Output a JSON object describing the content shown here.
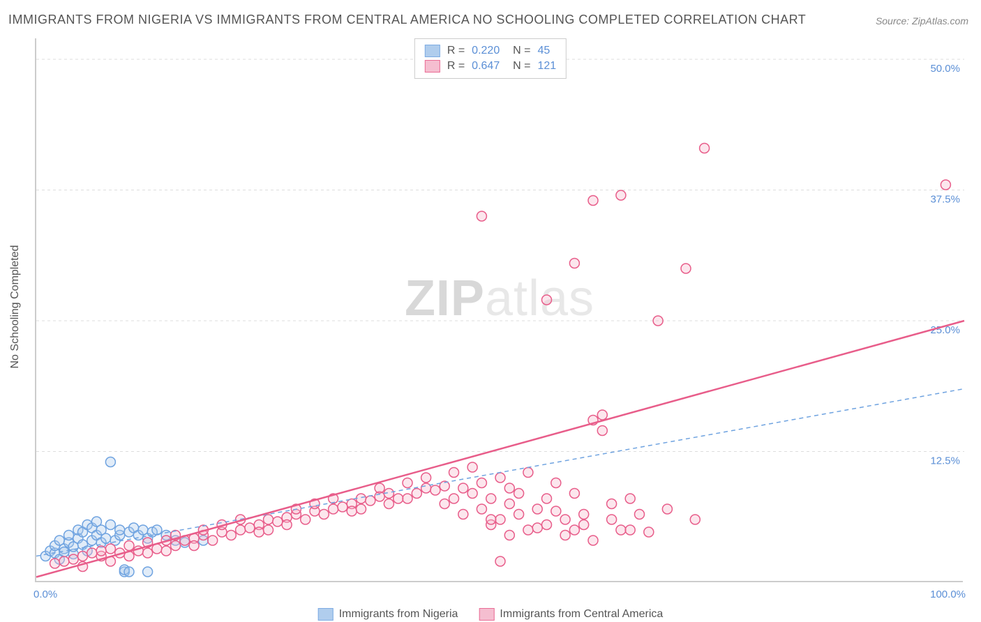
{
  "title": "IMMIGRANTS FROM NIGERIA VS IMMIGRANTS FROM CENTRAL AMERICA NO SCHOOLING COMPLETED CORRELATION CHART",
  "source": "Source: ZipAtlas.com",
  "watermark_zip": "ZIP",
  "watermark_atlas": "atlas",
  "y_axis_title": "No Schooling Completed",
  "x_label_min": "0.0%",
  "x_label_max": "100.0%",
  "chart": {
    "type": "scatter",
    "background_color": "#ffffff",
    "grid_color": "#dddddd",
    "axis_color": "#cccccc",
    "tick_label_color": "#5b8fd6",
    "xlim": [
      0,
      100
    ],
    "ylim": [
      0,
      52
    ],
    "y_ticks": [
      12.5,
      25.0,
      37.5,
      50.0
    ],
    "y_tick_labels": [
      "12.5%",
      "25.0%",
      "37.5%",
      "50.0%"
    ],
    "marker_radius": 7,
    "marker_stroke_width": 1.5,
    "marker_fill_opacity": 0.35,
    "series": [
      {
        "id": "nigeria",
        "label": "Immigrants from Nigeria",
        "color": "#6fa3e0",
        "fill": "#a8c8ec",
        "R": "0.220",
        "N": "45",
        "trend": {
          "x1": 0,
          "y1": 2.5,
          "x2": 100,
          "y2": 18.5,
          "style": "dashed",
          "width": 1.5
        },
        "points": [
          [
            1,
            2.5
          ],
          [
            1.5,
            3.0
          ],
          [
            2,
            2.8
          ],
          [
            2,
            3.5
          ],
          [
            2.5,
            2.2
          ],
          [
            2.5,
            4.0
          ],
          [
            3,
            3.2
          ],
          [
            3,
            2.9
          ],
          [
            3.5,
            3.8
          ],
          [
            3.5,
            4.5
          ],
          [
            4,
            2.7
          ],
          [
            4,
            3.4
          ],
          [
            4.5,
            4.2
          ],
          [
            4.5,
            5.0
          ],
          [
            5,
            3.6
          ],
          [
            5,
            4.8
          ],
          [
            5.5,
            5.5
          ],
          [
            5.5,
            3.0
          ],
          [
            6,
            4.0
          ],
          [
            6,
            5.2
          ],
          [
            6.5,
            4.5
          ],
          [
            6.5,
            5.8
          ],
          [
            7,
            3.8
          ],
          [
            7,
            5.0
          ],
          [
            7.5,
            4.2
          ],
          [
            8,
            5.5
          ],
          [
            8,
            11.5
          ],
          [
            8.5,
            4.0
          ],
          [
            9,
            4.5
          ],
          [
            9,
            5.0
          ],
          [
            9.5,
            1.0
          ],
          [
            9.5,
            1.2
          ],
          [
            10,
            4.8
          ],
          [
            10,
            1.0
          ],
          [
            10.5,
            5.2
          ],
          [
            11,
            4.5
          ],
          [
            11.5,
            5.0
          ],
          [
            12,
            4.2
          ],
          [
            12,
            1.0
          ],
          [
            12.5,
            4.8
          ],
          [
            13,
            5.0
          ],
          [
            14,
            4.5
          ],
          [
            15,
            4.0
          ],
          [
            16,
            3.8
          ],
          [
            18,
            4.0
          ]
        ]
      },
      {
        "id": "central_america",
        "label": "Immigrants from Central America",
        "color": "#e85d8a",
        "fill": "#f5b8cb",
        "R": "0.647",
        "N": "121",
        "trend": {
          "x1": 0,
          "y1": 0.5,
          "x2": 100,
          "y2": 25.0,
          "style": "solid",
          "width": 2.5
        },
        "points": [
          [
            2,
            1.8
          ],
          [
            3,
            2.0
          ],
          [
            4,
            2.2
          ],
          [
            5,
            2.5
          ],
          [
            5,
            1.5
          ],
          [
            6,
            2.8
          ],
          [
            7,
            2.5
          ],
          [
            7,
            3.0
          ],
          [
            8,
            3.2
          ],
          [
            8,
            2.0
          ],
          [
            9,
            2.8
          ],
          [
            10,
            3.5
          ],
          [
            10,
            2.5
          ],
          [
            11,
            3.0
          ],
          [
            12,
            3.8
          ],
          [
            12,
            2.8
          ],
          [
            13,
            3.2
          ],
          [
            14,
            4.0
          ],
          [
            14,
            3.0
          ],
          [
            15,
            3.5
          ],
          [
            15,
            4.5
          ],
          [
            16,
            4.0
          ],
          [
            17,
            4.2
          ],
          [
            17,
            3.5
          ],
          [
            18,
            4.5
          ],
          [
            18,
            5.0
          ],
          [
            19,
            4.0
          ],
          [
            20,
            4.8
          ],
          [
            20,
            5.5
          ],
          [
            21,
            4.5
          ],
          [
            22,
            5.0
          ],
          [
            22,
            6.0
          ],
          [
            23,
            5.2
          ],
          [
            24,
            5.5
          ],
          [
            24,
            4.8
          ],
          [
            25,
            6.0
          ],
          [
            25,
            5.0
          ],
          [
            26,
            5.8
          ],
          [
            27,
            6.2
          ],
          [
            27,
            5.5
          ],
          [
            28,
            6.5
          ],
          [
            28,
            7.0
          ],
          [
            29,
            6.0
          ],
          [
            30,
            6.8
          ],
          [
            30,
            7.5
          ],
          [
            31,
            6.5
          ],
          [
            32,
            7.0
          ],
          [
            32,
            8.0
          ],
          [
            33,
            7.2
          ],
          [
            34,
            7.5
          ],
          [
            34,
            6.8
          ],
          [
            35,
            8.0
          ],
          [
            35,
            7.0
          ],
          [
            36,
            7.8
          ],
          [
            37,
            8.2
          ],
          [
            37,
            9.0
          ],
          [
            38,
            8.5
          ],
          [
            38,
            7.5
          ],
          [
            39,
            8.0
          ],
          [
            40,
            9.5
          ],
          [
            40,
            8.0
          ],
          [
            41,
            8.5
          ],
          [
            42,
            9.0
          ],
          [
            42,
            10.0
          ],
          [
            43,
            8.8
          ],
          [
            44,
            9.2
          ],
          [
            44,
            7.5
          ],
          [
            45,
            8.0
          ],
          [
            45,
            10.5
          ],
          [
            46,
            9.0
          ],
          [
            46,
            6.5
          ],
          [
            47,
            8.5
          ],
          [
            47,
            11.0
          ],
          [
            48,
            7.0
          ],
          [
            48,
            9.5
          ],
          [
            49,
            8.0
          ],
          [
            49,
            5.5
          ],
          [
            50,
            6.0
          ],
          [
            50,
            10.0
          ],
          [
            51,
            7.5
          ],
          [
            51,
            9.0
          ],
          [
            52,
            6.5
          ],
          [
            52,
            8.5
          ],
          [
            53,
            5.0
          ],
          [
            53,
            10.5
          ],
          [
            54,
            7.0
          ],
          [
            55,
            8.0
          ],
          [
            55,
            5.5
          ],
          [
            56,
            9.5
          ],
          [
            57,
            6.0
          ],
          [
            57,
            4.5
          ],
          [
            58,
            5.0
          ],
          [
            58,
            8.5
          ],
          [
            59,
            6.5
          ],
          [
            60,
            4.0
          ],
          [
            60,
            15.5
          ],
          [
            61,
            16.0
          ],
          [
            61,
            14.5
          ],
          [
            62,
            7.5
          ],
          [
            63,
            5.0
          ],
          [
            63,
            37.0
          ],
          [
            64,
            8.0
          ],
          [
            65,
            6.5
          ],
          [
            66,
            4.8
          ],
          [
            67,
            25.0
          ],
          [
            68,
            7.0
          ],
          [
            70,
            30.0
          ],
          [
            71,
            6.0
          ],
          [
            72,
            41.5
          ],
          [
            98,
            38.0
          ],
          [
            48,
            35.0
          ],
          [
            50,
            2.0
          ],
          [
            55,
            27.0
          ],
          [
            58,
            30.5
          ],
          [
            60,
            36.5
          ],
          [
            49,
            6.0
          ],
          [
            51,
            4.5
          ],
          [
            54,
            5.2
          ],
          [
            56,
            6.8
          ],
          [
            59,
            5.5
          ],
          [
            62,
            6.0
          ],
          [
            64,
            5.0
          ]
        ]
      }
    ]
  }
}
